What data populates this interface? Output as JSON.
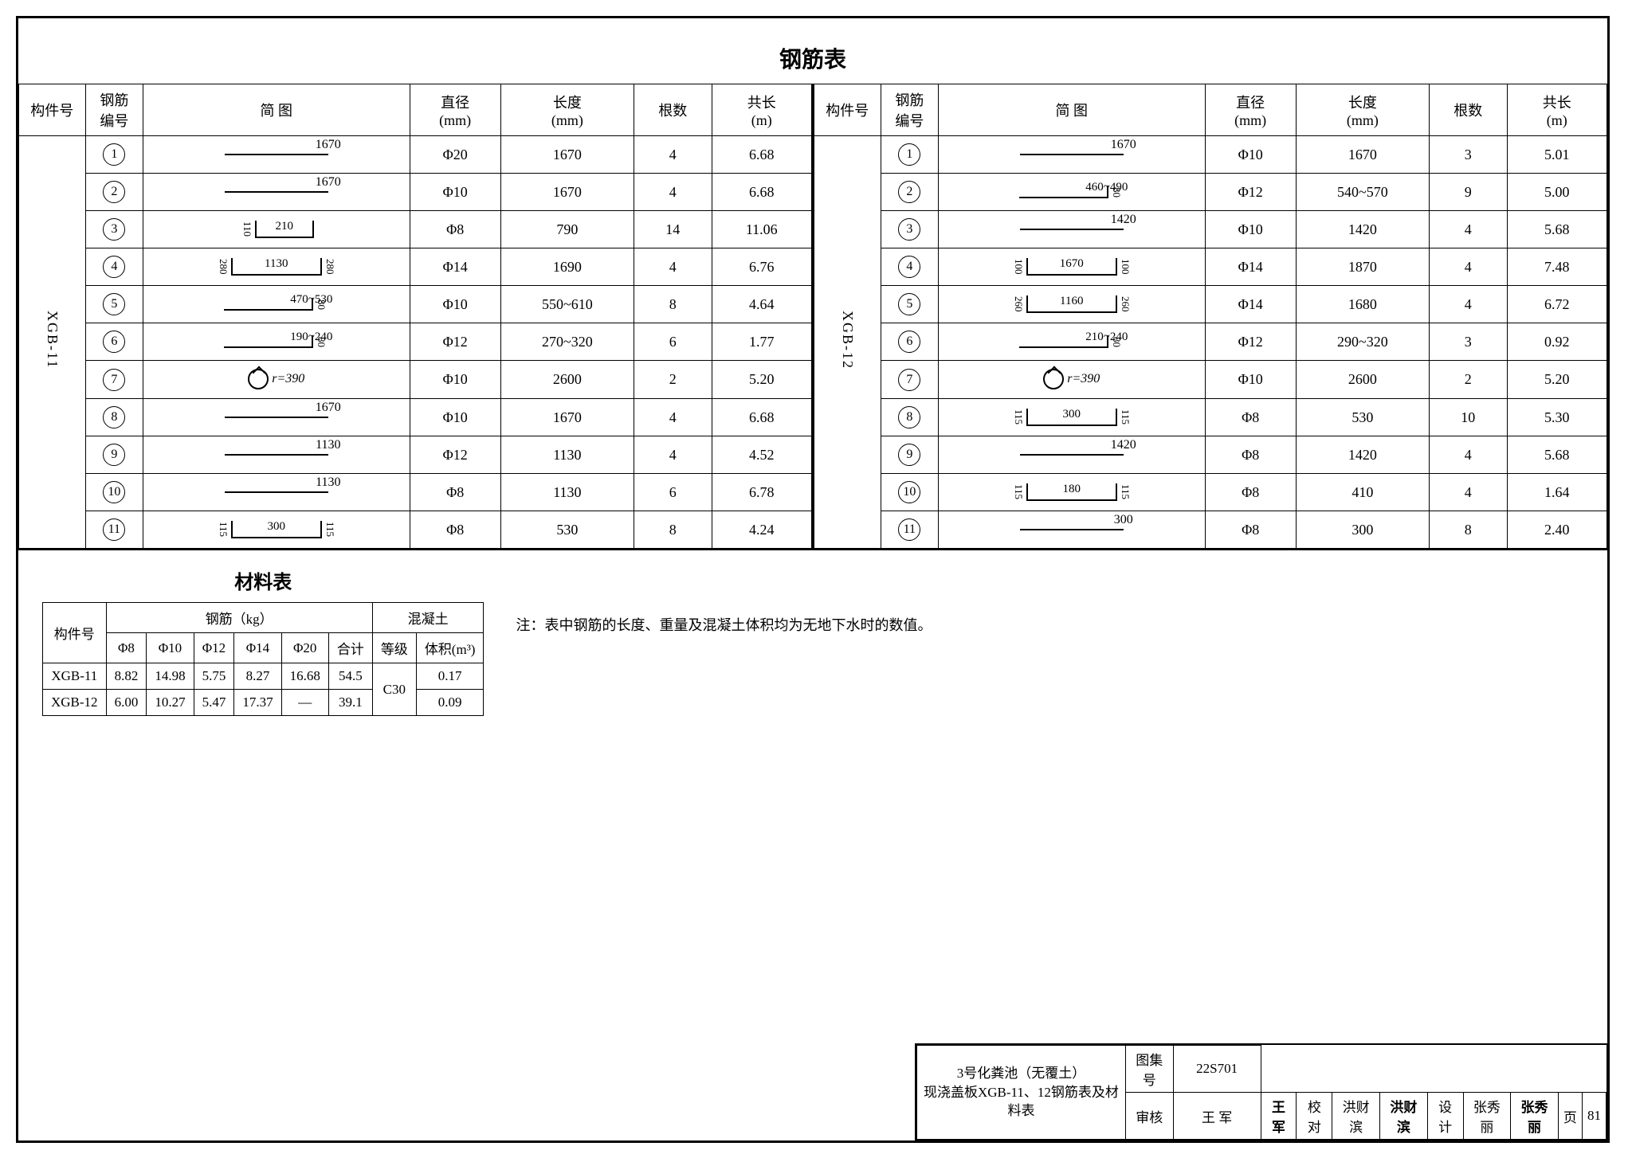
{
  "title": "钢筋表",
  "headers": {
    "component": "构件号",
    "rebar_no": "钢筋\n编号",
    "sketch": "简    图",
    "dia": "直径\n(mm)",
    "length": "长度\n(mm)",
    "count": "根数",
    "total": "共长\n(m)"
  },
  "left": {
    "component": "XGB-11",
    "rows": [
      {
        "n": "1",
        "sk": {
          "type": "straight",
          "label": "1670"
        },
        "dia": "Φ20",
        "len": "1670",
        "cnt": "4",
        "tot": "6.68"
      },
      {
        "n": "2",
        "sk": {
          "type": "straight",
          "label": "1670"
        },
        "dia": "Φ10",
        "len": "1670",
        "cnt": "4",
        "tot": "6.68"
      },
      {
        "n": "3",
        "sk": {
          "type": "lbox",
          "side": "110",
          "mid": "210",
          "tail": true
        },
        "dia": "Φ8",
        "len": "790",
        "cnt": "14",
        "tot": "11.06"
      },
      {
        "n": "4",
        "sk": {
          "type": "u",
          "l": "280",
          "mid": "1130",
          "r": "280"
        },
        "dia": "Φ14",
        "len": "1690",
        "cnt": "4",
        "tot": "6.76"
      },
      {
        "n": "5",
        "sk": {
          "type": "hook",
          "label": "470~530",
          "side": "80"
        },
        "dia": "Φ10",
        "len": "550~610",
        "cnt": "8",
        "tot": "4.64"
      },
      {
        "n": "6",
        "sk": {
          "type": "hook",
          "label": "190~240",
          "side": "80"
        },
        "dia": "Φ12",
        "len": "270~320",
        "cnt": "6",
        "tot": "1.77"
      },
      {
        "n": "7",
        "sk": {
          "type": "ring",
          "label": "r=390"
        },
        "dia": "Φ10",
        "len": "2600",
        "cnt": "2",
        "tot": "5.20"
      },
      {
        "n": "8",
        "sk": {
          "type": "straight",
          "label": "1670"
        },
        "dia": "Φ10",
        "len": "1670",
        "cnt": "4",
        "tot": "6.68"
      },
      {
        "n": "9",
        "sk": {
          "type": "straight",
          "label": "1130"
        },
        "dia": "Φ12",
        "len": "1130",
        "cnt": "4",
        "tot": "4.52"
      },
      {
        "n": "10",
        "sk": {
          "type": "straight",
          "label": "1130"
        },
        "dia": "Φ8",
        "len": "1130",
        "cnt": "6",
        "tot": "6.78"
      },
      {
        "n": "11",
        "sk": {
          "type": "u",
          "l": "115",
          "mid": "300",
          "r": "115"
        },
        "dia": "Φ8",
        "len": "530",
        "cnt": "8",
        "tot": "4.24"
      }
    ]
  },
  "right": {
    "component": "XGB-12",
    "rows": [
      {
        "n": "1",
        "sk": {
          "type": "straight",
          "label": "1670"
        },
        "dia": "Φ10",
        "len": "1670",
        "cnt": "3",
        "tot": "5.01"
      },
      {
        "n": "2",
        "sk": {
          "type": "hook",
          "label": "460~490",
          "side": "80"
        },
        "dia": "Φ12",
        "len": "540~570",
        "cnt": "9",
        "tot": "5.00"
      },
      {
        "n": "3",
        "sk": {
          "type": "straight",
          "label": "1420"
        },
        "dia": "Φ10",
        "len": "1420",
        "cnt": "4",
        "tot": "5.68"
      },
      {
        "n": "4",
        "sk": {
          "type": "u",
          "l": "100",
          "mid": "1670",
          "r": "100"
        },
        "dia": "Φ14",
        "len": "1870",
        "cnt": "4",
        "tot": "7.48"
      },
      {
        "n": "5",
        "sk": {
          "type": "u",
          "l": "260",
          "mid": "1160",
          "r": "260"
        },
        "dia": "Φ14",
        "len": "1680",
        "cnt": "4",
        "tot": "6.72"
      },
      {
        "n": "6",
        "sk": {
          "type": "hook",
          "label": "210~240",
          "side": "80"
        },
        "dia": "Φ12",
        "len": "290~320",
        "cnt": "3",
        "tot": "0.92"
      },
      {
        "n": "7",
        "sk": {
          "type": "ring",
          "label": "r=390"
        },
        "dia": "Φ10",
        "len": "2600",
        "cnt": "2",
        "tot": "5.20"
      },
      {
        "n": "8",
        "sk": {
          "type": "u",
          "l": "115",
          "mid": "300",
          "r": "115"
        },
        "dia": "Φ8",
        "len": "530",
        "cnt": "10",
        "tot": "5.30"
      },
      {
        "n": "9",
        "sk": {
          "type": "straight",
          "label": "1420"
        },
        "dia": "Φ8",
        "len": "1420",
        "cnt": "4",
        "tot": "5.68"
      },
      {
        "n": "10",
        "sk": {
          "type": "u",
          "l": "115",
          "mid": "180",
          "r": "115"
        },
        "dia": "Φ8",
        "len": "410",
        "cnt": "4",
        "tot": "1.64"
      },
      {
        "n": "11",
        "sk": {
          "type": "straight",
          "label": "300"
        },
        "dia": "Φ8",
        "len": "300",
        "cnt": "8",
        "tot": "2.40"
      }
    ]
  },
  "material": {
    "title": "材料表",
    "headers": {
      "component": "构件号",
      "rebar": "钢筋（kg）",
      "concrete": "混凝土",
      "d8": "Φ8",
      "d10": "Φ10",
      "d12": "Φ12",
      "d14": "Φ14",
      "d20": "Φ20",
      "sum": "合计",
      "grade": "等级",
      "vol": "体积(m³)"
    },
    "grade": "C30",
    "rows": [
      {
        "c": "XGB-11",
        "d8": "8.82",
        "d10": "14.98",
        "d12": "5.75",
        "d14": "8.27",
        "d20": "16.68",
        "sum": "54.5",
        "vol": "0.17"
      },
      {
        "c": "XGB-12",
        "d8": "6.00",
        "d10": "10.27",
        "d12": "5.47",
        "d14": "17.37",
        "d20": "—",
        "sum": "39.1",
        "vol": "0.09"
      }
    ]
  },
  "note": "注：表中钢筋的长度、重量及混凝土体积均为无地下水时的数值。",
  "titleblock": {
    "line1": "3号化粪池（无覆土）",
    "line2": "现浇盖板XGB-11、12钢筋表及材料表",
    "album_lbl": "图集号",
    "album": "22S701",
    "page_lbl": "页",
    "page": "81",
    "check_lbl": "审核",
    "check": "王 军",
    "check_sig": "王军",
    "proof_lbl": "校对",
    "proof": "洪财滨",
    "proof_sig": "洪财滨",
    "design_lbl": "设计",
    "design": "张秀丽",
    "design_sig": "张秀丽"
  }
}
